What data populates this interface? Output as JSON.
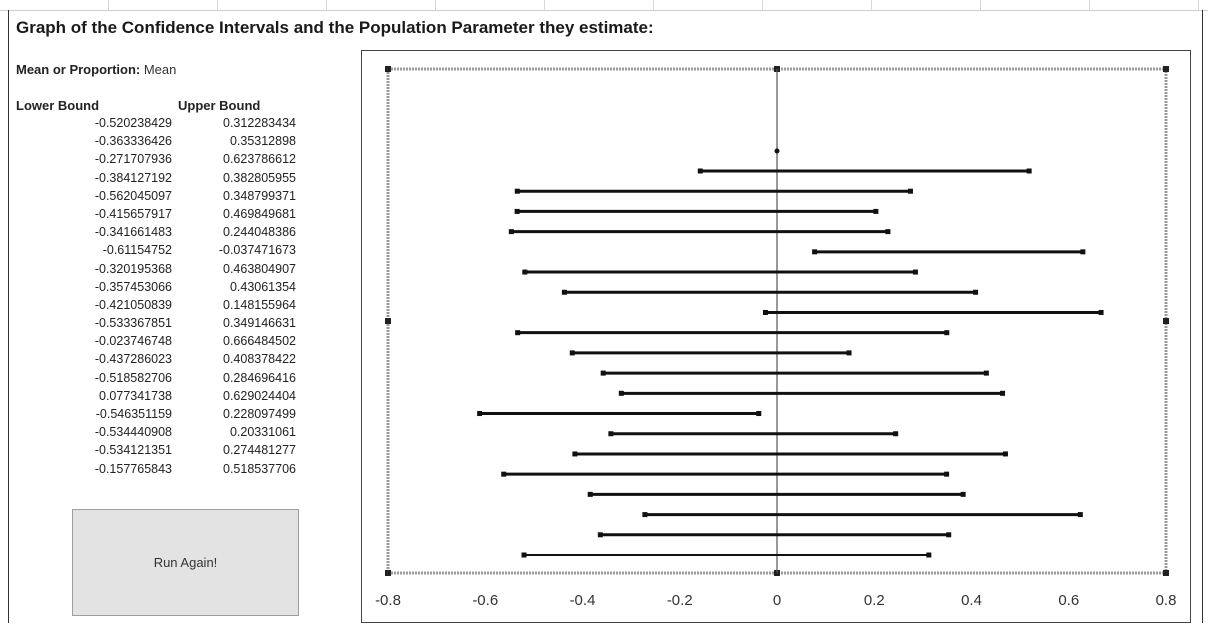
{
  "title": "Graph of the Confidence Intervals and the Population Parameter they estimate:",
  "mean_or_proportion": {
    "label": "Mean or Proportion:",
    "value": "Mean"
  },
  "table": {
    "headers": {
      "lower": "Lower Bound",
      "upper": "Upper Bound"
    },
    "rows": [
      {
        "lower": "-0.520238429",
        "upper": "0.312283434"
      },
      {
        "lower": "-0.363336426",
        "upper": "0.35312898"
      },
      {
        "lower": "-0.271707936",
        "upper": "0.623786612"
      },
      {
        "lower": "-0.384127192",
        "upper": "0.382805955"
      },
      {
        "lower": "-0.562045097",
        "upper": "0.348799371"
      },
      {
        "lower": "-0.415657917",
        "upper": "0.469849681"
      },
      {
        "lower": "-0.341661483",
        "upper": "0.244048386"
      },
      {
        "lower": "-0.61154752",
        "upper": "-0.037471673"
      },
      {
        "lower": "-0.320195368",
        "upper": "0.463804907"
      },
      {
        "lower": "-0.357453066",
        "upper": "0.43061354"
      },
      {
        "lower": "-0.421050839",
        "upper": "0.148155964"
      },
      {
        "lower": "-0.533367851",
        "upper": "0.349146631"
      },
      {
        "lower": "-0.023746748",
        "upper": "0.666484502"
      },
      {
        "lower": "-0.437286023",
        "upper": "0.408378422"
      },
      {
        "lower": "-0.518582706",
        "upper": "0.284696416"
      },
      {
        "lower": "0.077341738",
        "upper": "0.629024404"
      },
      {
        "lower": "-0.546351159",
        "upper": "0.228097499"
      },
      {
        "lower": "-0.534440908",
        "upper": "0.20331061"
      },
      {
        "lower": "-0.534121351",
        "upper": "0.274481277"
      },
      {
        "lower": "-0.157765843",
        "upper": "0.518537706"
      }
    ]
  },
  "button": {
    "label": "Run Again!"
  },
  "colors": {
    "interval": "#111111",
    "parameter_line": "#555555",
    "button_bg": "#e3e3e3"
  },
  "chart_data": {
    "type": "interval",
    "orientation": "horizontal",
    "xlim": [
      -0.8,
      0.8
    ],
    "xticks": [
      "-0.8",
      "-0.6",
      "-0.4",
      "-0.2",
      "0",
      "0.2",
      "0.4",
      "0.6",
      "0.8"
    ],
    "parameter_value": 0,
    "intervals": [
      {
        "lower": -0.157765843,
        "upper": 0.518537706
      },
      {
        "lower": -0.534121351,
        "upper": 0.274481277
      },
      {
        "lower": -0.534440908,
        "upper": 0.20331061
      },
      {
        "lower": -0.546351159,
        "upper": 0.228097499
      },
      {
        "lower": 0.077341738,
        "upper": 0.629024404
      },
      {
        "lower": -0.518582706,
        "upper": 0.284696416
      },
      {
        "lower": -0.437286023,
        "upper": 0.408378422
      },
      {
        "lower": -0.023746748,
        "upper": 0.666484502
      },
      {
        "lower": -0.533367851,
        "upper": 0.349146631
      },
      {
        "lower": -0.421050839,
        "upper": 0.148155964
      },
      {
        "lower": -0.357453066,
        "upper": 0.43061354
      },
      {
        "lower": -0.320195368,
        "upper": 0.463804907
      },
      {
        "lower": -0.61154752,
        "upper": -0.037471673
      },
      {
        "lower": -0.341661483,
        "upper": 0.244048386
      },
      {
        "lower": -0.415657917,
        "upper": 0.469849681
      },
      {
        "lower": -0.562045097,
        "upper": 0.348799371
      },
      {
        "lower": -0.384127192,
        "upper": 0.382805955
      },
      {
        "lower": -0.271707936,
        "upper": 0.623786612
      },
      {
        "lower": -0.363336426,
        "upper": 0.35312898
      },
      {
        "lower": -0.520238429,
        "upper": 0.312283434
      }
    ]
  }
}
